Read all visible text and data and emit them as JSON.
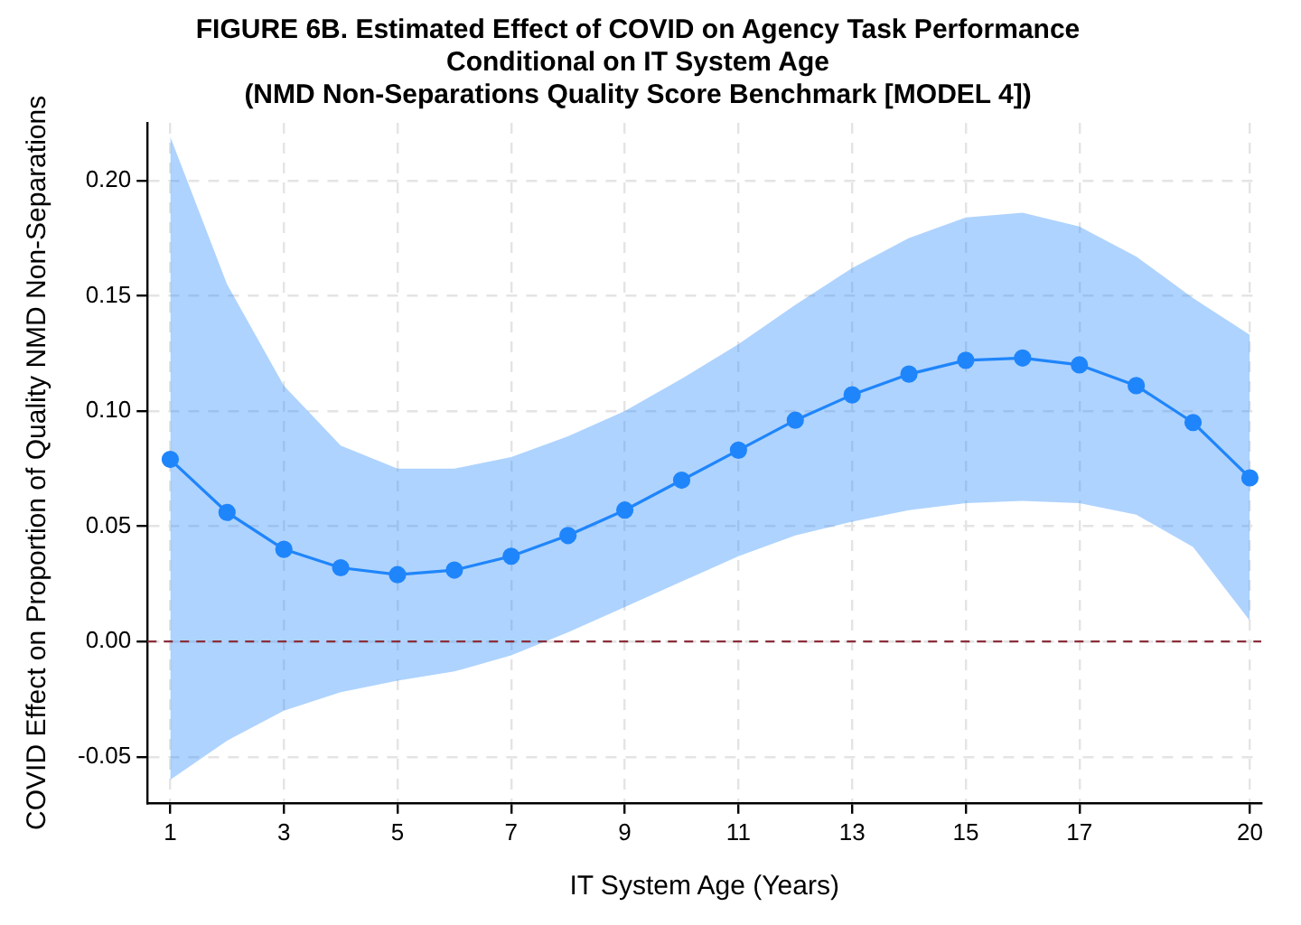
{
  "chart_data": {
    "type": "line",
    "title": "FIGURE 6B. Estimated Effect of COVID on Agency Task Performance\nConditional on IT System Age\n(NMD Non-Separations Quality Score Benchmark [MODEL 4])",
    "xlabel": "IT System Age (Years)",
    "ylabel": "COVID Effect on Proportion of Quality NMD Non-Separations",
    "x": [
      1,
      2,
      3,
      4,
      5,
      6,
      7,
      8,
      9,
      10,
      11,
      12,
      13,
      14,
      15,
      16,
      17,
      18,
      19,
      20
    ],
    "series": [
      {
        "color": "#1f85fb",
        "values": [
          0.079,
          0.056,
          0.04,
          0.032,
          0.029,
          0.031,
          0.037,
          0.046,
          0.057,
          0.07,
          0.083,
          0.096,
          0.107,
          0.116,
          0.122,
          0.123,
          0.12,
          0.111,
          0.095,
          0.071
        ],
        "lower": [
          -0.06,
          -0.043,
          -0.03,
          -0.022,
          -0.017,
          -0.013,
          -0.006,
          0.004,
          0.015,
          0.026,
          0.037,
          0.046,
          0.052,
          0.057,
          0.06,
          0.061,
          0.06,
          0.055,
          0.041,
          0.009
        ],
        "upper": [
          0.219,
          0.155,
          0.111,
          0.085,
          0.075,
          0.075,
          0.08,
          0.089,
          0.1,
          0.114,
          0.129,
          0.146,
          0.162,
          0.175,
          0.184,
          0.186,
          0.18,
          0.167,
          0.149,
          0.133
        ]
      }
    ],
    "xlim": [
      0.6,
      20.2
    ],
    "xticks": [
      1,
      3,
      5,
      7,
      9,
      11,
      13,
      15,
      17,
      20
    ],
    "ylim": [
      -0.07,
      0.225
    ],
    "yticks": [
      {
        "value": -0.05,
        "label": "-0.05"
      },
      {
        "value": 0,
        "label": "0.00"
      },
      {
        "value": 0.05,
        "label": "0.05"
      },
      {
        "value": 0.1,
        "label": "0.10"
      },
      {
        "value": 0.15,
        "label": "0.15"
      },
      {
        "value": 0.2,
        "label": "0.20"
      }
    ],
    "ref_lines": [
      {
        "axis": "y",
        "value": 0,
        "color": "#8b2e3a",
        "line_style": "dashed"
      }
    ],
    "grid": true,
    "legend": false,
    "marker": "circle",
    "line_style": "solid"
  }
}
